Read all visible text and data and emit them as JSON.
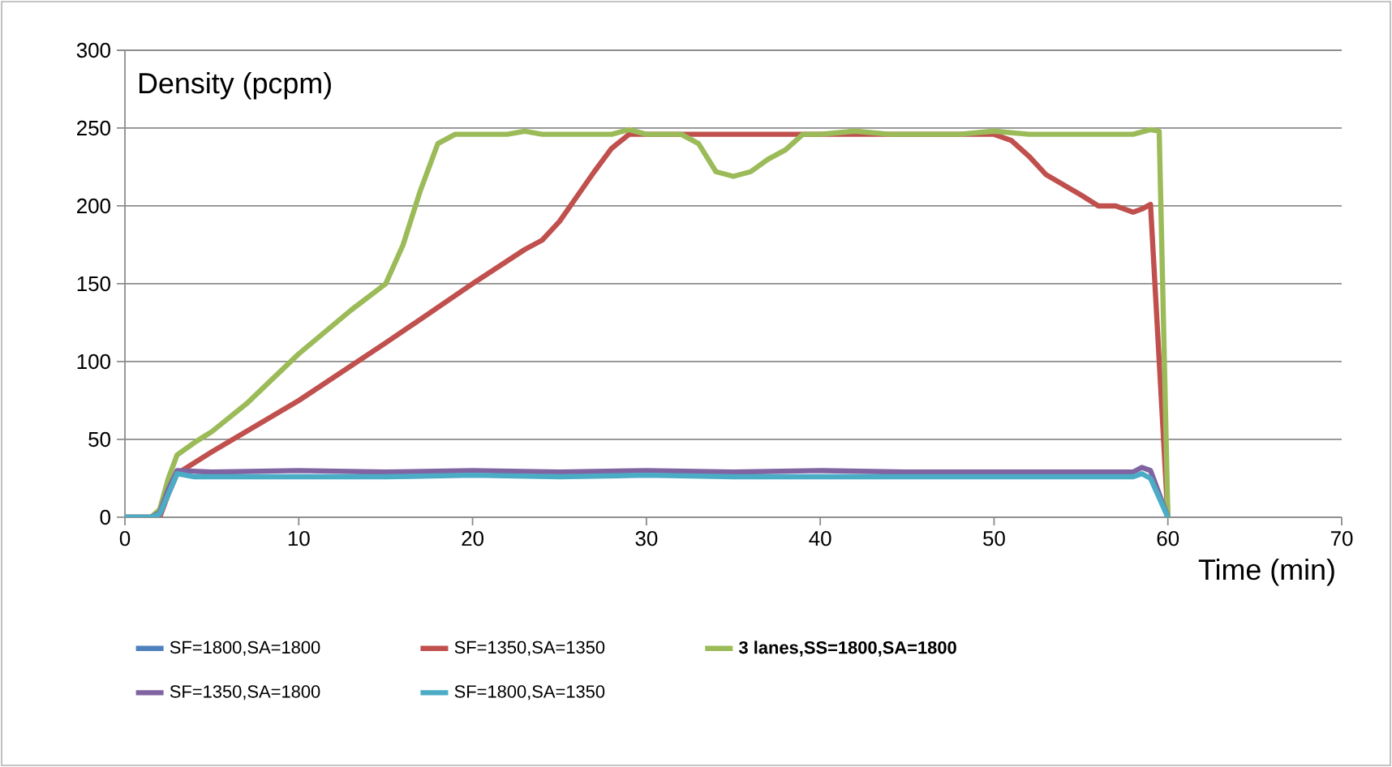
{
  "chart_data": {
    "type": "line",
    "xlabel": "Time (min)",
    "ylabel": "Density (pcpm)",
    "xlim": [
      0,
      70
    ],
    "ylim": [
      0,
      300
    ],
    "xticks": [
      0,
      10,
      20,
      30,
      40,
      50,
      60,
      70
    ],
    "yticks": [
      0,
      50,
      100,
      150,
      200,
      250,
      300
    ],
    "grid": "y",
    "legend": "bottom",
    "marker": "none",
    "line_style": "solid",
    "series": [
      {
        "name": "SF=1800,SA=1800",
        "color": "#4f81bd",
        "values": [
          null
        ]
      },
      {
        "name": "SF=1350,SA=1350",
        "color": "#c0504d",
        "x": [
          0,
          2,
          2.5,
          3,
          5,
          10,
          15,
          20,
          23,
          24,
          25,
          27,
          28,
          29,
          30,
          50,
          51,
          52,
          53,
          55,
          56,
          57,
          58,
          58.5,
          59,
          60
        ],
        "values": [
          0,
          0,
          15,
          28,
          42,
          75,
          112,
          150,
          172,
          178,
          190,
          222,
          237,
          246,
          246,
          246,
          242,
          232,
          220,
          207,
          200,
          200,
          196,
          198,
          201,
          0
        ]
      },
      {
        "name": "**3 lanes,SS=1800,SA=1800**",
        "color": "#9bbb59",
        "x": [
          0,
          1.5,
          2,
          2.5,
          3,
          4,
          5,
          7,
          10,
          13,
          15,
          16,
          17,
          18,
          19,
          21,
          22,
          23,
          24,
          26,
          28,
          29,
          30,
          32,
          33,
          34,
          35,
          36,
          37,
          38,
          39,
          40,
          42,
          44,
          48,
          50,
          52,
          56,
          58,
          59,
          59.5,
          60
        ],
        "values": [
          0,
          0,
          5,
          25,
          40,
          48,
          55,
          73,
          105,
          133,
          150,
          175,
          210,
          240,
          246,
          246,
          246,
          248,
          246,
          246,
          246,
          249,
          246,
          246,
          240,
          222,
          219,
          222,
          230,
          236,
          246,
          246,
          248,
          246,
          246,
          248,
          246,
          246,
          246,
          249,
          248,
          0
        ]
      },
      {
        "name": "SF=1350,SA=1800",
        "color": "#8064a2",
        "x": [
          0,
          1.5,
          2,
          2.5,
          3,
          5,
          10,
          15,
          20,
          25,
          30,
          35,
          40,
          45,
          50,
          55,
          58,
          58.5,
          59,
          60
        ],
        "values": [
          0,
          0,
          3,
          18,
          30,
          29,
          30,
          29,
          30,
          29,
          30,
          29,
          30,
          29,
          29,
          29,
          29,
          32,
          30,
          0
        ]
      },
      {
        "name": "SF=1800,SA=1350",
        "color": "#4bacc6",
        "x": [
          0,
          1.5,
          2,
          2.5,
          3,
          4,
          10,
          15,
          20,
          25,
          30,
          35,
          40,
          45,
          50,
          55,
          58,
          58.5,
          59,
          60
        ],
        "values": [
          0,
          0,
          2,
          15,
          28,
          26,
          26,
          26,
          27,
          26,
          27,
          26,
          26,
          26,
          26,
          26,
          26,
          28,
          25,
          0
        ]
      }
    ]
  }
}
